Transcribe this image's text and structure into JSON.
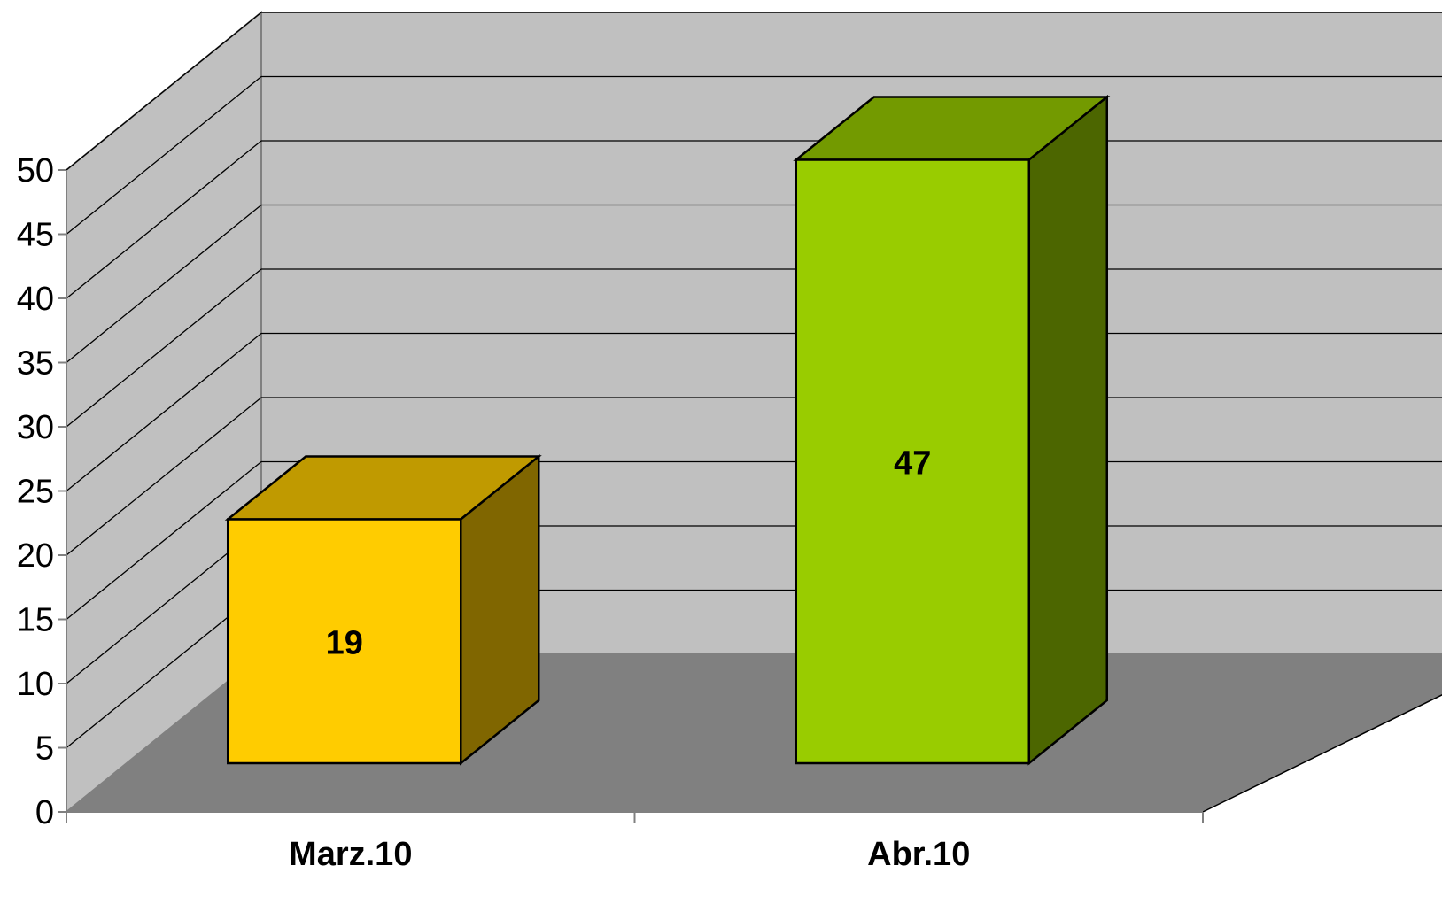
{
  "chart_data": {
    "type": "bar",
    "categories": [
      "Marz.10",
      "Abr.10"
    ],
    "values": [
      19,
      47
    ],
    "data_labels": [
      "19",
      "47"
    ],
    "ylim": [
      0,
      50
    ],
    "y_ticks": [
      0,
      5,
      10,
      15,
      20,
      25,
      30,
      35,
      40,
      45,
      50
    ],
    "grid": true,
    "legend": "none",
    "colors": {
      "bars": [
        "#FFCC00",
        "#99CC00"
      ],
      "bar_tops": [
        "#C09A00",
        "#739A00"
      ],
      "bar_sides": [
        "#806600",
        "#4C6600"
      ],
      "back_wall": "#C0C0C0",
      "side_wall": "#C0C0C0",
      "floor": "#808080"
    }
  }
}
